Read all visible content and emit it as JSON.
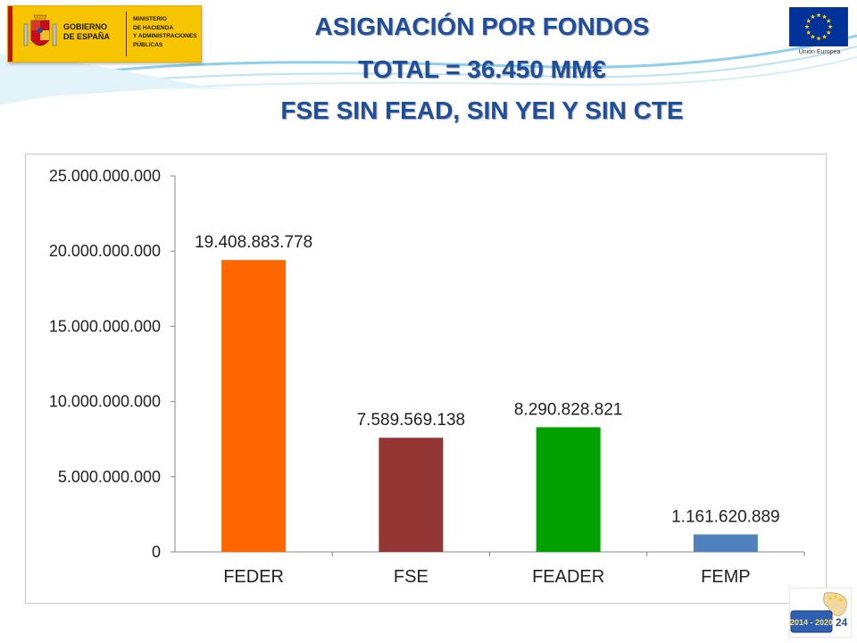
{
  "header": {
    "gov_text": "GOBIERNO\nDE ESPAÑA",
    "ministry_text": "MINISTERIO\nDE HACIENDA\nY ADMINISTRACIONES\nPÚBLICAS",
    "eu_label": "Unión Europea",
    "badge_text": "2014 - 2020",
    "page_number": "24"
  },
  "titles": {
    "line1": "ASIGNACIÓN POR FONDOS",
    "line2": "TOTAL = 36.450 MM€",
    "line3": "FSE SIN FEAD, SIN YEI Y SIN CTE"
  },
  "colors": {
    "title": "#1f4e9c",
    "eu_blue": "#003399",
    "eu_star": "#ffcc00"
  },
  "chart_data": {
    "type": "bar",
    "categories": [
      "FEDER",
      "FSE",
      "FEADER",
      "FEMP"
    ],
    "values": [
      19408883778,
      7589569138,
      8290828821,
      1161620889
    ],
    "data_labels": [
      "19.408.883.778",
      "7.589.569.138",
      "8.290.828.821",
      "1.161.620.889"
    ],
    "bar_colors": [
      "#ff6600",
      "#943634",
      "#00a100",
      "#4f81bd"
    ],
    "ylim": [
      0,
      25000000000
    ],
    "yticks": [
      0,
      5000000000,
      10000000000,
      15000000000,
      20000000000,
      25000000000
    ],
    "ytick_labels": [
      "0",
      "5.000.000.000",
      "10.000.000.000",
      "15.000.000.000",
      "20.000.000.000",
      "25.000.000.000"
    ],
    "grid": false,
    "legend": "none"
  }
}
